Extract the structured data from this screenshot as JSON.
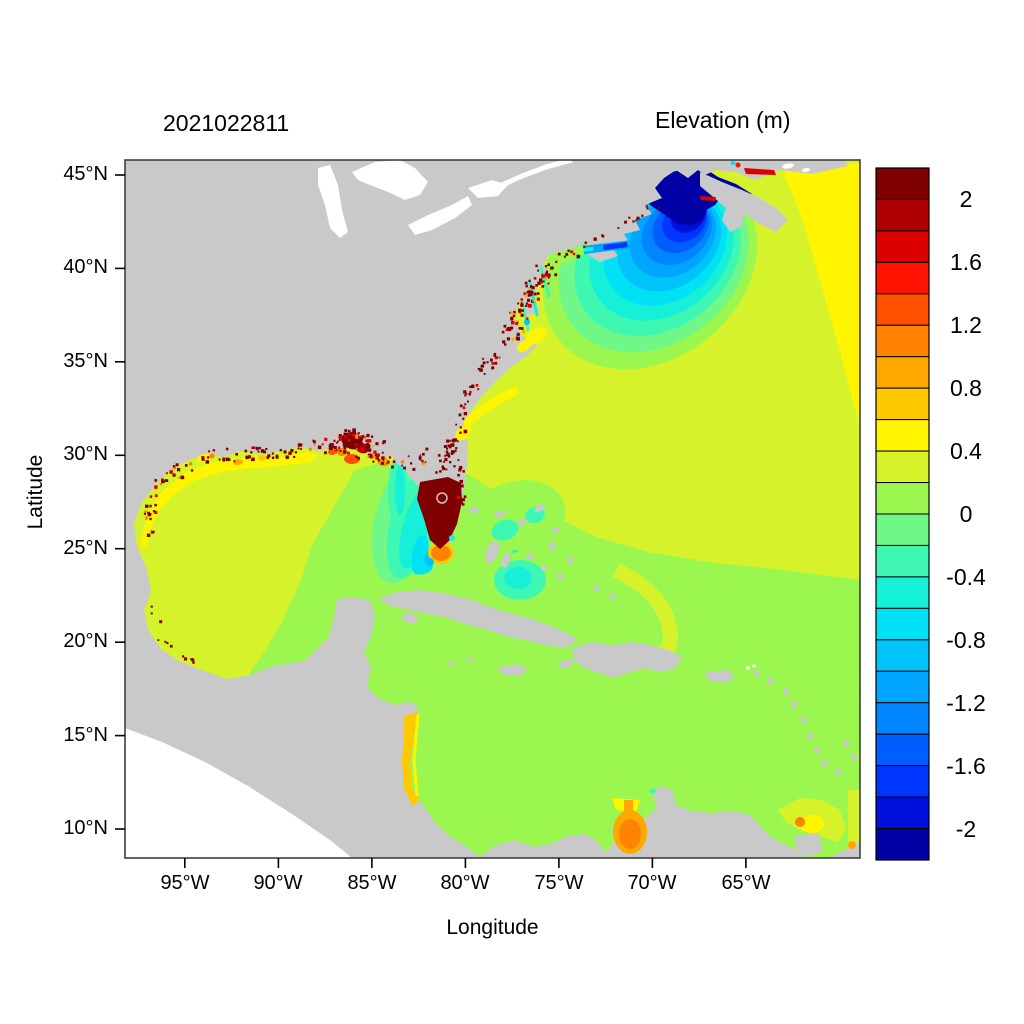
{
  "chart_data": {
    "type": "heatmap",
    "title": "2021022811",
    "colorbar_title": "Elevation (m)",
    "xlabel": "Longitude",
    "ylabel": "Latitude",
    "x_ticks": [
      {
        "lon": -95,
        "label": "95°W"
      },
      {
        "lon": -90,
        "label": "90°W"
      },
      {
        "lon": -85,
        "label": "85°W"
      },
      {
        "lon": -80,
        "label": "80°W"
      },
      {
        "lon": -75,
        "label": "75°W"
      },
      {
        "lon": -70,
        "label": "70°W"
      },
      {
        "lon": -65,
        "label": "65°W"
      }
    ],
    "y_ticks": [
      {
        "lat": 45,
        "label": "45°N"
      },
      {
        "lat": 40,
        "label": "40°N"
      },
      {
        "lat": 35,
        "label": "35°N"
      },
      {
        "lat": 30,
        "label": "30°N"
      },
      {
        "lat": 25,
        "label": "25°N"
      },
      {
        "lat": 20,
        "label": "20°N"
      },
      {
        "lat": 15,
        "label": "15°N"
      },
      {
        "lat": 10,
        "label": "10°N"
      }
    ],
    "lon_range": [
      -98.2,
      -58.9
    ],
    "lat_range": [
      8.45,
      45.8
    ],
    "grid": false,
    "colorbar": {
      "max": 2.2,
      "min": -2.2,
      "step": 0.2,
      "ticks": [
        {
          "value": 2,
          "label": "2"
        },
        {
          "value": 1.6,
          "label": "1.6"
        },
        {
          "value": 1.2,
          "label": "1.2"
        },
        {
          "value": 0.8,
          "label": "0.8"
        },
        {
          "value": 0.4,
          "label": "0.4"
        },
        {
          "value": 0,
          "label": "0"
        },
        {
          "value": -0.4,
          "label": "-0.4"
        },
        {
          "value": -0.8,
          "label": "-0.8"
        },
        {
          "value": -1.2,
          "label": "-1.2"
        },
        {
          "value": -1.6,
          "label": "-1.6"
        },
        {
          "value": -2,
          "label": "-2"
        }
      ],
      "colors_top_to_bottom": [
        "#7f0000",
        "#ae0000",
        "#dd0000",
        "#ff1300",
        "#ff5000",
        "#ff8200",
        "#ffa900",
        "#ffc900",
        "#fff500",
        "#d6f22b",
        "#9bf74f",
        "#6ff787",
        "#3ef7b2",
        "#16f0d8",
        "#00e1f5",
        "#00c3fa",
        "#00a5ff",
        "#0085ff",
        "#005eff",
        "#0034ff",
        "#0010dc",
        "#0000a5"
      ]
    },
    "map_colors": {
      "land": "#c9c9c9",
      "no_data": "#ffffff",
      "frame": "#3f3f3f"
    },
    "features": [
      {
        "region": "Atlantic and western Gulf of Mexico background",
        "elevation_m": 0.3
      },
      {
        "region": "Caribbean Sea and southeastern waters",
        "elevation_m": 0.1
      },
      {
        "region": "Offshore Nova Scotia (top-right corner)",
        "elevation_m": 0.5
      },
      {
        "region": "Gulf of Maine / Bay of Fundy minimum",
        "elevation_m": -2.1
      },
      {
        "region": "Long Island Sound",
        "elevation_m": -1.3
      },
      {
        "region": "South Florida / Everglades maximum",
        "elevation_m": 2.1
      },
      {
        "region": "Florida Bay spot",
        "elevation_m": 1.1
      },
      {
        "region": "West Florida shelf",
        "elevation_m": -0.4
      },
      {
        "region": "Bahama banks",
        "elevation_m": -0.4
      },
      {
        "region": "Louisiana-Mississippi coast highs",
        "elevation_m": 1.6
      },
      {
        "region": "Northern Gulf coastal band",
        "elevation_m": 0.5
      },
      {
        "region": "Nicaragua (Mosquito) coast",
        "elevation_m": 0.7
      },
      {
        "region": "Lake Maracaibo",
        "elevation_m": 0.9
      },
      {
        "region": "Trinidad / Gulf of Paria patch",
        "elevation_m": 0.5
      },
      {
        "region": "Coastal river/estuary speckles",
        "elevation_m": 2.1
      },
      {
        "region": "Land",
        "elevation_m": null
      },
      {
        "region": "Outside model domain (Pacific, Great Lakes)",
        "elevation_m": null
      }
    ]
  }
}
